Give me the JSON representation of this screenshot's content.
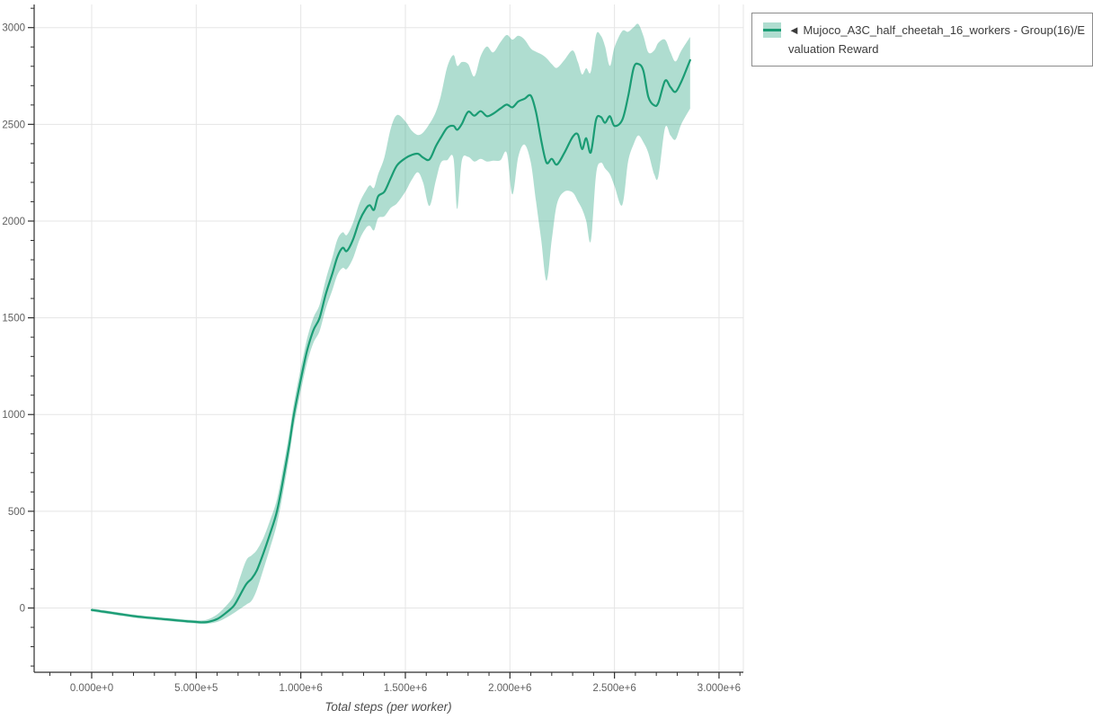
{
  "chart_data": {
    "type": "line",
    "title": "",
    "xlabel": "Total steps (per worker)",
    "ylabel": "",
    "grid": true,
    "legend_position": "top-right",
    "xlim": [
      -275000,
      3120000
    ],
    "ylim": [
      -330,
      3120
    ],
    "x_ticks": [
      {
        "value": 0,
        "label": "0.000e+0"
      },
      {
        "value": 500000,
        "label": "5.000e+5"
      },
      {
        "value": 1000000,
        "label": "1.000e+6"
      },
      {
        "value": 1500000,
        "label": "1.500e+6"
      },
      {
        "value": 2000000,
        "label": "2.000e+6"
      },
      {
        "value": 2500000,
        "label": "2.500e+6"
      },
      {
        "value": 3000000,
        "label": "3.000e+6"
      }
    ],
    "x_minor_tick_interval": 100000,
    "y_ticks": [
      {
        "value": 0,
        "label": "0"
      },
      {
        "value": 500,
        "label": "500"
      },
      {
        "value": 1000,
        "label": "1000"
      },
      {
        "value": 1500,
        "label": "1500"
      },
      {
        "value": 2000,
        "label": "2000"
      },
      {
        "value": 2500,
        "label": "2500"
      },
      {
        "value": 3000,
        "label": "3000"
      }
    ],
    "y_minor_tick_interval": 100,
    "series": [
      {
        "name": "Mujoco_A3C_half_cheetah_16_workers - Group(16)/Evaluation Reward",
        "line_color": "#1a9c74",
        "band_color": "rgba(27,158,119,0.35)",
        "points_format": [
          "step",
          "mean",
          "band_low",
          "band_high"
        ],
        "points": [
          [
            0,
            -10,
            -18,
            -2
          ],
          [
            50000,
            -18,
            -26,
            -10
          ],
          [
            100000,
            -26,
            -34,
            -18
          ],
          [
            150000,
            -34,
            -42,
            -26
          ],
          [
            200000,
            -42,
            -50,
            -34
          ],
          [
            250000,
            -48,
            -56,
            -40
          ],
          [
            300000,
            -53,
            -61,
            -45
          ],
          [
            350000,
            -58,
            -66,
            -50
          ],
          [
            400000,
            -63,
            -71,
            -55
          ],
          [
            450000,
            -68,
            -76,
            -60
          ],
          [
            500000,
            -72,
            -80,
            -63
          ],
          [
            530000,
            -74,
            -82,
            -64
          ],
          [
            560000,
            -71,
            -80,
            -57
          ],
          [
            600000,
            -57,
            -72,
            -33
          ],
          [
            640000,
            -27,
            -52,
            8
          ],
          [
            680000,
            12,
            -26,
            65
          ],
          [
            710000,
            68,
            -4,
            160
          ],
          [
            740000,
            125,
            18,
            248
          ],
          [
            765000,
            152,
            38,
            272
          ],
          [
            790000,
            195,
            95,
            300
          ],
          [
            820000,
            280,
            195,
            360
          ],
          [
            850000,
            375,
            300,
            445
          ],
          [
            886000,
            500,
            435,
            562
          ],
          [
            920000,
            690,
            625,
            752
          ],
          [
            945000,
            845,
            785,
            905
          ],
          [
            967000,
            1000,
            942,
            1058
          ],
          [
            1000000,
            1180,
            1120,
            1240
          ],
          [
            1030000,
            1330,
            1268,
            1392
          ],
          [
            1060000,
            1435,
            1370,
            1500
          ],
          [
            1090000,
            1500,
            1432,
            1568
          ],
          [
            1120000,
            1625,
            1550,
            1700
          ],
          [
            1150000,
            1725,
            1640,
            1808
          ],
          [
            1175000,
            1815,
            1722,
            1905
          ],
          [
            1200000,
            1862,
            1758,
            1942
          ],
          [
            1220000,
            1845,
            1752,
            1928
          ],
          [
            1250000,
            1905,
            1808,
            1992
          ],
          [
            1280000,
            2000,
            1902,
            2092
          ],
          [
            1310000,
            2062,
            1962,
            2155
          ],
          [
            1330000,
            2082,
            1975,
            2185
          ],
          [
            1350000,
            2058,
            1952,
            2172
          ],
          [
            1370000,
            2128,
            2015,
            2242
          ],
          [
            1400000,
            2152,
            2025,
            2330
          ],
          [
            1430000,
            2222,
            2068,
            2478
          ],
          [
            1460000,
            2288,
            2092,
            2548
          ],
          [
            1500000,
            2325,
            2152,
            2515
          ],
          [
            1530000,
            2342,
            2212,
            2468
          ],
          [
            1560000,
            2348,
            2252,
            2445
          ],
          [
            1585000,
            2328,
            2198,
            2458
          ],
          [
            1615000,
            2318,
            2078,
            2502
          ],
          [
            1645000,
            2385,
            2205,
            2562
          ],
          [
            1670000,
            2432,
            2302,
            2648
          ],
          [
            1700000,
            2482,
            2315,
            2795
          ],
          [
            1730000,
            2492,
            2325,
            2858
          ],
          [
            1748000,
            2472,
            2062,
            2802
          ],
          [
            1770000,
            2502,
            2312,
            2822
          ],
          [
            1800000,
            2565,
            2332,
            2812
          ],
          [
            1830000,
            2545,
            2308,
            2748
          ],
          [
            1860000,
            2568,
            2322,
            2852
          ],
          [
            1890000,
            2542,
            2308,
            2902
          ],
          [
            1920000,
            2555,
            2312,
            2872
          ],
          [
            1955000,
            2582,
            2315,
            2925
          ],
          [
            1985000,
            2602,
            2352,
            2962
          ],
          [
            2012000,
            2588,
            2138,
            2938
          ],
          [
            2040000,
            2618,
            2332,
            2958
          ],
          [
            2070000,
            2632,
            2395,
            2938
          ],
          [
            2100000,
            2648,
            2302,
            2892
          ],
          [
            2125000,
            2562,
            2100,
            2875
          ],
          [
            2150000,
            2415,
            1900,
            2862
          ],
          [
            2175000,
            2302,
            1692,
            2842
          ],
          [
            2200000,
            2322,
            1902,
            2812
          ],
          [
            2225000,
            2292,
            2088,
            2792
          ],
          [
            2260000,
            2352,
            2152,
            2832
          ],
          [
            2300000,
            2435,
            2148,
            2882
          ],
          [
            2325000,
            2448,
            2102,
            2822
          ],
          [
            2345000,
            2372,
            2062,
            2758
          ],
          [
            2365000,
            2428,
            2000,
            2790
          ],
          [
            2387000,
            2355,
            1898,
            2772
          ],
          [
            2412000,
            2525,
            2242,
            2962
          ],
          [
            2435000,
            2538,
            2302,
            2958
          ],
          [
            2455000,
            2508,
            2272,
            2902
          ],
          [
            2478000,
            2542,
            2242,
            2802
          ],
          [
            2500000,
            2492,
            2182,
            2898
          ],
          [
            2537000,
            2522,
            2082,
            2982
          ],
          [
            2565000,
            2642,
            2305,
            2978
          ],
          [
            2592000,
            2792,
            2398,
            3002
          ],
          [
            2614000,
            2812,
            2442,
            3018
          ],
          [
            2638000,
            2778,
            2408,
            2958
          ],
          [
            2662000,
            2642,
            2352,
            2872
          ],
          [
            2690000,
            2598,
            2242,
            2882
          ],
          [
            2710000,
            2612,
            2232,
            2922
          ],
          [
            2742000,
            2725,
            2482,
            2938
          ],
          [
            2768000,
            2692,
            2442,
            2872
          ],
          [
            2792000,
            2668,
            2422,
            2825
          ],
          [
            2820000,
            2722,
            2502,
            2882
          ],
          [
            2862000,
            2832,
            2582,
            2952
          ]
        ]
      }
    ]
  },
  "legend": {
    "label_full": "◄ Mujoco_A3C_half_cheetah_16_workers - Group(16)/Evaluation Reward",
    "label_line1": "◄ Mujoco_A3C_half_cheetah_16_workers - Group(16)/E",
    "label_line2": "valuation Reward"
  },
  "colors": {
    "accent_line": "#1a9c74",
    "band": "rgba(27,158,119,0.35)",
    "grid": "#e5e5e5",
    "axis": "#2e2e2e",
    "tick_label": "#606060",
    "axis_title": "#4d4d4d",
    "legend_border": "#8c8c8c",
    "legend_text": "#3b3b3b"
  }
}
